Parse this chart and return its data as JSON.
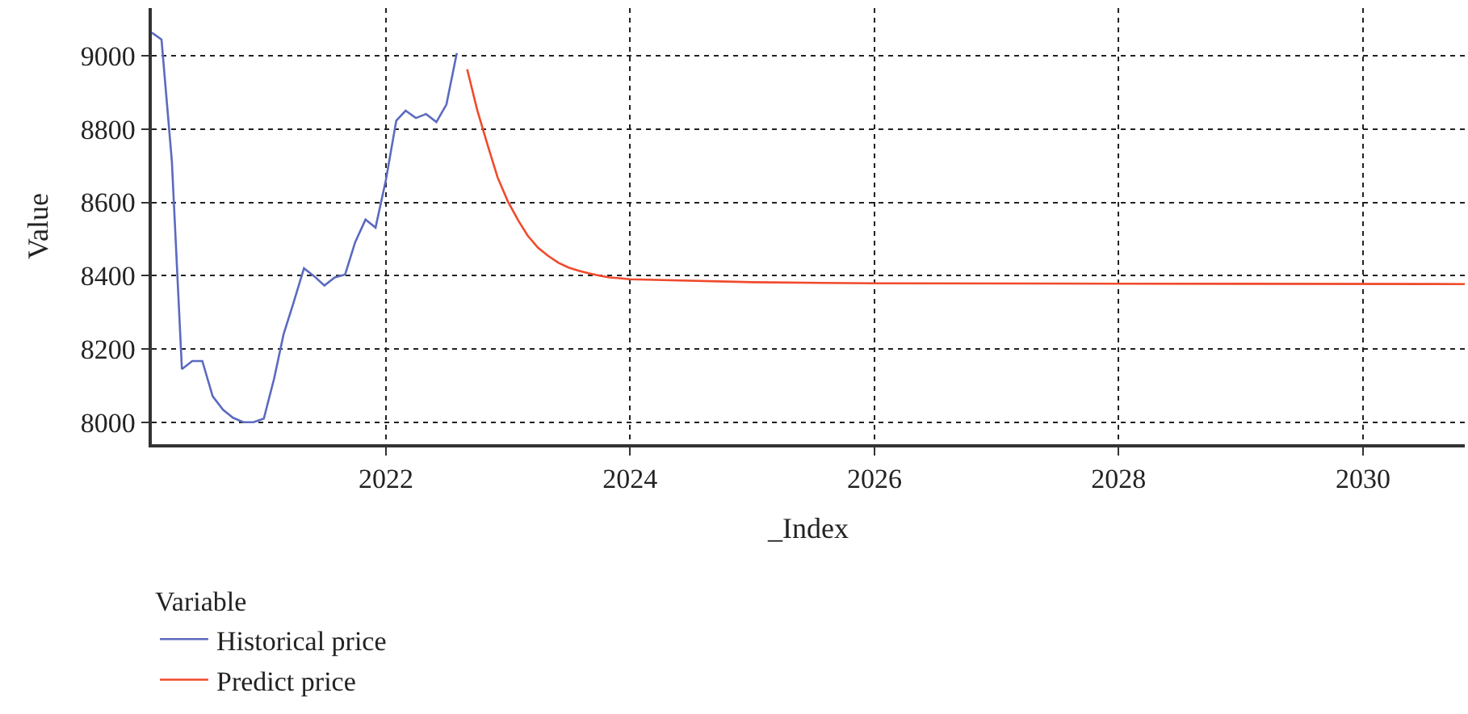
{
  "chart_data": {
    "type": "line",
    "xlabel": "_Index",
    "ylabel": "Value",
    "legend_title": "Variable",
    "xlim": [
      "2020-02",
      "2030-11"
    ],
    "xticks": [
      {
        "value": "2022-01-01",
        "label": "2022"
      },
      {
        "value": "2024-01-01",
        "label": "2024"
      },
      {
        "value": "2026-01-01",
        "label": "2026"
      },
      {
        "value": "2028-01-01",
        "label": "2028"
      },
      {
        "value": "2030-01-01",
        "label": "2030"
      }
    ],
    "ylim": [
      7940,
      9130
    ],
    "yticks": [
      8000,
      8200,
      8400,
      8600,
      8800,
      9000
    ],
    "grid": true,
    "legend": "bottom left",
    "line_style": "solid",
    "marker": "none",
    "series": [
      {
        "name": "Historical price",
        "color": "#5b6abf",
        "x": [
          "2020-02",
          "2020-03",
          "2020-04",
          "2020-05",
          "2020-06",
          "2020-07",
          "2020-08",
          "2020-09",
          "2020-10",
          "2020-11",
          "2020-12",
          "2021-01",
          "2021-02",
          "2021-03",
          "2021-04",
          "2021-05",
          "2021-06",
          "2021-07",
          "2021-08",
          "2021-09",
          "2021-10",
          "2021-11",
          "2021-12",
          "2022-01",
          "2022-02",
          "2022-03",
          "2022-04",
          "2022-05",
          "2022-06",
          "2022-07",
          "2022-08"
        ],
        "values": [
          9063,
          9044,
          8712,
          8145,
          8167,
          8167,
          8071,
          8034,
          8012,
          8000,
          8000,
          8010,
          8120,
          8240,
          8330,
          8420,
          8398,
          8373,
          8395,
          8403,
          8491,
          8553,
          8531,
          8661,
          8823,
          8850,
          8830,
          8841,
          8819,
          8867,
          9007
        ]
      },
      {
        "name": "Predict price",
        "color": "#f04a2c",
        "x": [
          "2022-09",
          "2022-10",
          "2022-11",
          "2022-12",
          "2023-01",
          "2023-02",
          "2023-03",
          "2023-04",
          "2023-05",
          "2023-06",
          "2023-07",
          "2023-08",
          "2023-09",
          "2023-10",
          "2023-11",
          "2023-12",
          "2024-01",
          "2025-01",
          "2026-01",
          "2028-01",
          "2030-11"
        ],
        "values": [
          8963,
          8852,
          8757,
          8668,
          8602,
          8550,
          8509,
          8476,
          8454,
          8435,
          8422,
          8413,
          8406,
          8400,
          8395,
          8393,
          8390,
          8382,
          8379,
          8378,
          8377
        ]
      }
    ]
  }
}
